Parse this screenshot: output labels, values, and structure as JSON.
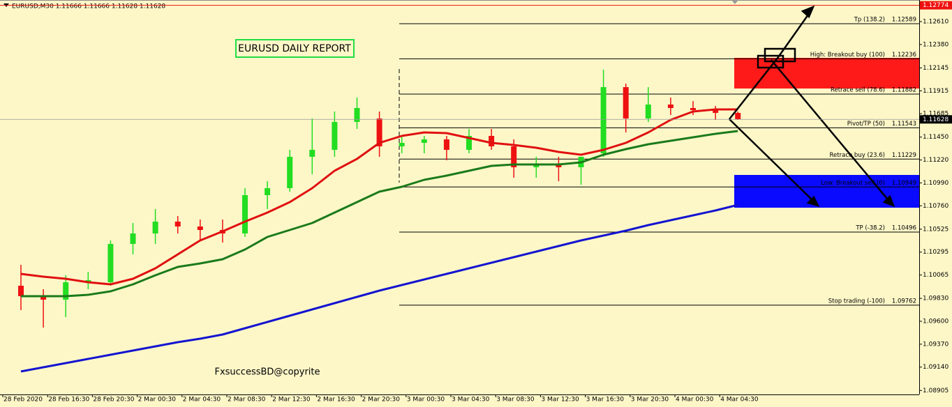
{
  "chart_data": {
    "type": "candlestick",
    "symbol_info": "EURUSD,M30  1.11666 1.11666 1.11628 1.11628",
    "title": "EURUSD DAILY REPORT",
    "watermark": "FxsuccessBD@copyrite",
    "categories": [
      "28 Feb 2020",
      null,
      "28 Feb 16:30",
      null,
      "28 Feb 20:30",
      null,
      "2 Mar 00:30",
      null,
      "2 Mar 04:30",
      null,
      "2 Mar 08:30",
      null,
      "2 Mar 12:30",
      null,
      "2 Mar 16:30",
      null,
      "2 Mar 20:30",
      null,
      "3 Mar 00:30",
      null,
      "3 Mar 04:30",
      null,
      "3 Mar 08:30",
      null,
      "3 Mar 12:30",
      null,
      "3 Mar 16:30",
      null,
      "3 Mar 20:30",
      null,
      "4 Mar 00:30",
      null,
      "4 Mar 04:30"
    ],
    "open": [
      1.09957,
      1.09852,
      1.09817,
      1.09992,
      1.09992,
      1.10377,
      1.10482,
      1.10601,
      1.10552,
      1.10517,
      1.10482,
      1.10867,
      1.10937,
      1.11252,
      1.11322,
      1.11602,
      1.11637,
      1.11357,
      1.11392,
      1.11427,
      1.11322,
      1.11462,
      1.11357,
      1.11147,
      1.11182,
      1.11147,
      1.11287,
      1.11952,
      1.11637,
      1.11777,
      1.11742,
      1.11721,
      1.11693
    ],
    "high": [
      1.10167,
      1.09922,
      1.10062,
      1.10097,
      1.10412,
      1.10587,
      1.10727,
      1.10657,
      1.10622,
      1.10622,
      1.10937,
      1.11007,
      1.11322,
      1.11637,
      1.11707,
      1.11847,
      1.11707,
      1.11462,
      1.11462,
      1.11462,
      1.11532,
      1.11532,
      1.11427,
      1.11252,
      1.11252,
      1.11252,
      1.12127,
      1.11987,
      1.11952,
      1.11847,
      1.11812,
      1.11763,
      1.11707
    ],
    "low": [
      1.09712,
      1.09537,
      1.09642,
      1.09922,
      1.09957,
      1.10272,
      1.10377,
      1.10482,
      1.10412,
      1.10391,
      1.10447,
      1.10727,
      1.10902,
      1.11077,
      1.11252,
      1.11532,
      1.11252,
      1.11287,
      1.11287,
      1.11217,
      1.11287,
      1.11322,
      1.11042,
      1.11042,
      1.11007,
      1.10972,
      1.11252,
      1.11497,
      1.11602,
      1.11672,
      1.11672,
      1.11623,
      1.11623
    ],
    "close": [
      1.09852,
      1.09817,
      1.09992,
      1.10013,
      1.10377,
      1.10482,
      1.10601,
      1.10552,
      1.10517,
      1.10482,
      1.10867,
      1.10937,
      1.11252,
      1.11322,
      1.11602,
      1.11742,
      1.11357,
      1.11392,
      1.11427,
      1.11322,
      1.11462,
      1.11357,
      1.11147,
      1.11182,
      1.11147,
      1.11252,
      1.11952,
      1.11637,
      1.11777,
      1.11742,
      1.11721,
      1.11693,
      1.11628
    ],
    "up_color": "#22dd22",
    "down_color": "#ee1111",
    "series": [
      {
        "color": "#e01010",
        "values": [
          1.10076,
          1.10048,
          1.10027,
          1.09992,
          1.09971,
          1.10027,
          1.10132,
          1.10272,
          1.10412,
          1.10503,
          1.10601,
          1.10692,
          1.10797,
          1.10937,
          1.11112,
          1.11231,
          1.11392,
          1.11462,
          1.11497,
          1.1149,
          1.11441,
          1.11392,
          1.11371,
          1.11343,
          1.11301,
          1.11273,
          1.11322,
          1.11392,
          1.11497,
          1.11623,
          1.11707,
          1.11728,
          1.11728
        ]
      },
      {
        "color": "#1a7a1a",
        "values": [
          1.09852,
          1.09852,
          1.09852,
          1.09866,
          1.09901,
          1.09971,
          1.10062,
          1.10146,
          1.10181,
          1.10223,
          1.10321,
          1.10447,
          1.10517,
          1.10587,
          1.10692,
          1.10797,
          1.10902,
          1.10951,
          1.11021,
          1.11063,
          1.11112,
          1.11161,
          1.11175,
          1.11175,
          1.11175,
          1.11196,
          1.11273,
          1.11329,
          1.11378,
          1.11413,
          1.11448,
          1.11483,
          1.11511
        ]
      },
      {
        "color": "#1414d0",
        "values": [
          1.09096,
          1.09138,
          1.0918,
          1.09222,
          1.09264,
          1.09306,
          1.09348,
          1.0939,
          1.09425,
          1.09467,
          1.0953,
          1.09593,
          1.09656,
          1.09719,
          1.09782,
          1.09845,
          1.09908,
          1.09964,
          1.1002,
          1.10076,
          1.10132,
          1.10188,
          1.10244,
          1.103,
          1.10356,
          1.10412,
          1.10461,
          1.1051,
          1.10566,
          1.10615,
          1.10664,
          1.10713,
          1.10769
        ]
      }
    ],
    "levels": [
      {
        "label": "Tp (138.2)",
        "value": 1.12589
      },
      {
        "label": "High: Breakout buy (100)",
        "value": 1.12236
      },
      {
        "label": "Retrace sell (78.6)",
        "value": 1.11882
      },
      {
        "label": "Pivot/TP (50)",
        "value": 1.11543
      },
      {
        "label": "Retrace buy (23.6)",
        "value": 1.11229
      },
      {
        "label": "Low: Breakout sell (0)",
        "value": 1.10949
      },
      {
        "label": "TP (-38.2)",
        "value": 1.10496
      },
      {
        "label": "Stop trading (-100)",
        "value": 1.09762
      }
    ],
    "current_price": 1.11628,
    "top_price": 1.12774,
    "ylim": [
      1.08865,
      1.12827
    ],
    "yticks": [
      {
        "value": 1.1261,
        "label": "1.12610"
      },
      {
        "value": 1.1238,
        "label": "1.12380"
      },
      1.12145,
      {
        "value": 1.11915,
        "label": "1.11915"
      },
      1.11685,
      {
        "value": 1.1145,
        "label": "1.11450"
      },
      {
        "value": 1.1122,
        "label": "1.11220"
      },
      {
        "value": 1.1099,
        "label": "1.10990"
      },
      {
        "value": 1.1076,
        "label": "1.10760"
      },
      1.10525,
      1.10295,
      1.10065,
      {
        "value": 1.0983,
        "label": "1.09830"
      },
      {
        "value": 1.096,
        "label": "1.09600"
      },
      {
        "value": 1.0937,
        "label": "1.09370"
      },
      {
        "value": 1.0914,
        "label": "1.09140"
      },
      1.08905
    ]
  }
}
